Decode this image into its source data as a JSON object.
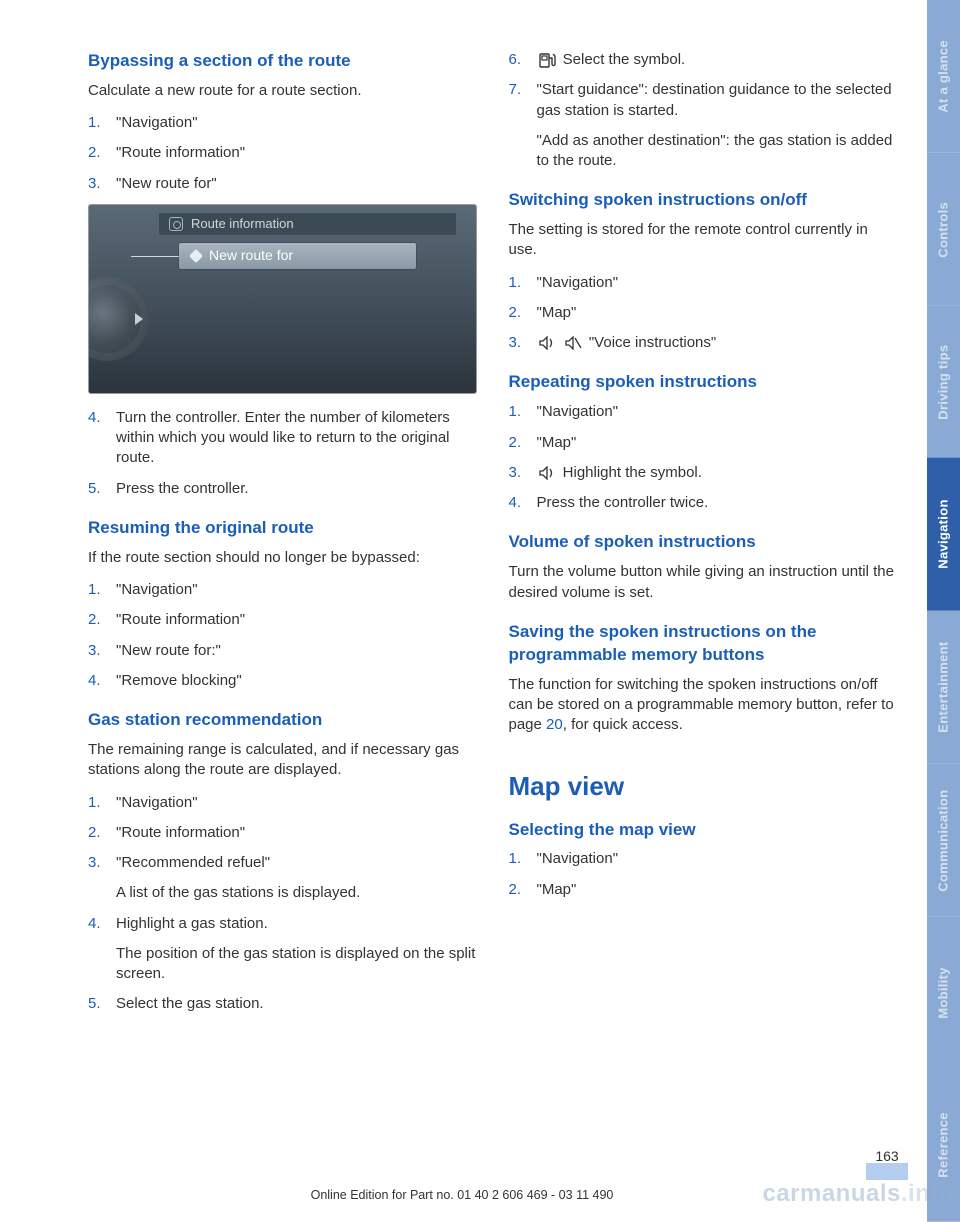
{
  "sidebar": {
    "tabs": [
      {
        "label": "At a glance",
        "bg": "#8aa9d4",
        "active": false
      },
      {
        "label": "Controls",
        "bg": "#8aa9d4",
        "active": false
      },
      {
        "label": "Driving tips",
        "bg": "#8aa9d4",
        "active": false
      },
      {
        "label": "Navigation",
        "bg": "#2e5fa8",
        "active": true
      },
      {
        "label": "Entertainment",
        "bg": "#8aa9d4",
        "active": false
      },
      {
        "label": "Communication",
        "bg": "#8aa9d4",
        "active": false
      },
      {
        "label": "Mobility",
        "bg": "#8aa9d4",
        "active": false
      },
      {
        "label": "Reference",
        "bg": "#8aa9d4",
        "active": false
      }
    ]
  },
  "left": {
    "sec1": {
      "title": "Bypassing a section of the route",
      "intro": "Calculate a new route for a route section.",
      "step1": "\"Navigation\"",
      "step2": "\"Route information\"",
      "step3": "\"New route for\"",
      "img_crumb": "Route information",
      "img_item": "New route for",
      "step4": "Turn the controller. Enter the number of kilo­meters within which you would like to return to the original route.",
      "step5": "Press the controller."
    },
    "sec2": {
      "title": "Resuming the original route",
      "intro": "If the route section should no longer be by­passed:",
      "step1": "\"Navigation\"",
      "step2": "\"Route information\"",
      "step3": "\"New route for:\"",
      "step4": "\"Remove blocking\""
    },
    "sec3": {
      "title": "Gas station recommendation",
      "intro": "The remaining range is calculated, and if nec­essary gas stations along the route are dis­played.",
      "step1": "\"Navigation\"",
      "step2": "\"Route information\"",
      "step3": "\"Recommended refuel\"",
      "step3b": "A list of the gas stations is displayed.",
      "step4": "Highlight a gas station.",
      "step4b": "The position of the gas station is displayed on the split screen.",
      "step5": "Select the gas station."
    }
  },
  "right": {
    "sec3cont": {
      "step6": " Select the symbol.",
      "step7a": "\"Start guidance\": destination guidance to the selected gas station is started.",
      "step7b": "\"Add as another destination\": the gas sta­tion is added to the route."
    },
    "sec4": {
      "title": "Switching spoken instructions on/off",
      "intro": "The setting is stored for the remote control cur­rently in use.",
      "step1": "\"Navigation\"",
      "step2": "\"Map\"",
      "step3": " \"Voice instructions\""
    },
    "sec5": {
      "title": "Repeating spoken instructions",
      "step1": "\"Navigation\"",
      "step2": "\"Map\"",
      "step3": " Highlight the symbol.",
      "step4": "Press the controller twice."
    },
    "sec6": {
      "title": "Volume of spoken instructions",
      "body": "Turn the volume button while giving an instruc­tion until the desired volume is set."
    },
    "sec7": {
      "title": "Saving the spoken instructions on the programmable memory buttons",
      "body_a": "The function for switching the spoken instruc­tions on/off can be stored on a programmable memory button, refer to page ",
      "body_link": "20",
      "body_b": ", for quick ac­cess."
    },
    "h1": "Map view",
    "sec8": {
      "title": "Selecting the map view",
      "step1": "\"Navigation\"",
      "step2": "\"Map\""
    }
  },
  "footer": {
    "page": "163",
    "line": "Online Edition for Part no. 01 40 2 606 469 - 03 11 490",
    "wm1": "carmanuals",
    "wm2": ".info"
  }
}
